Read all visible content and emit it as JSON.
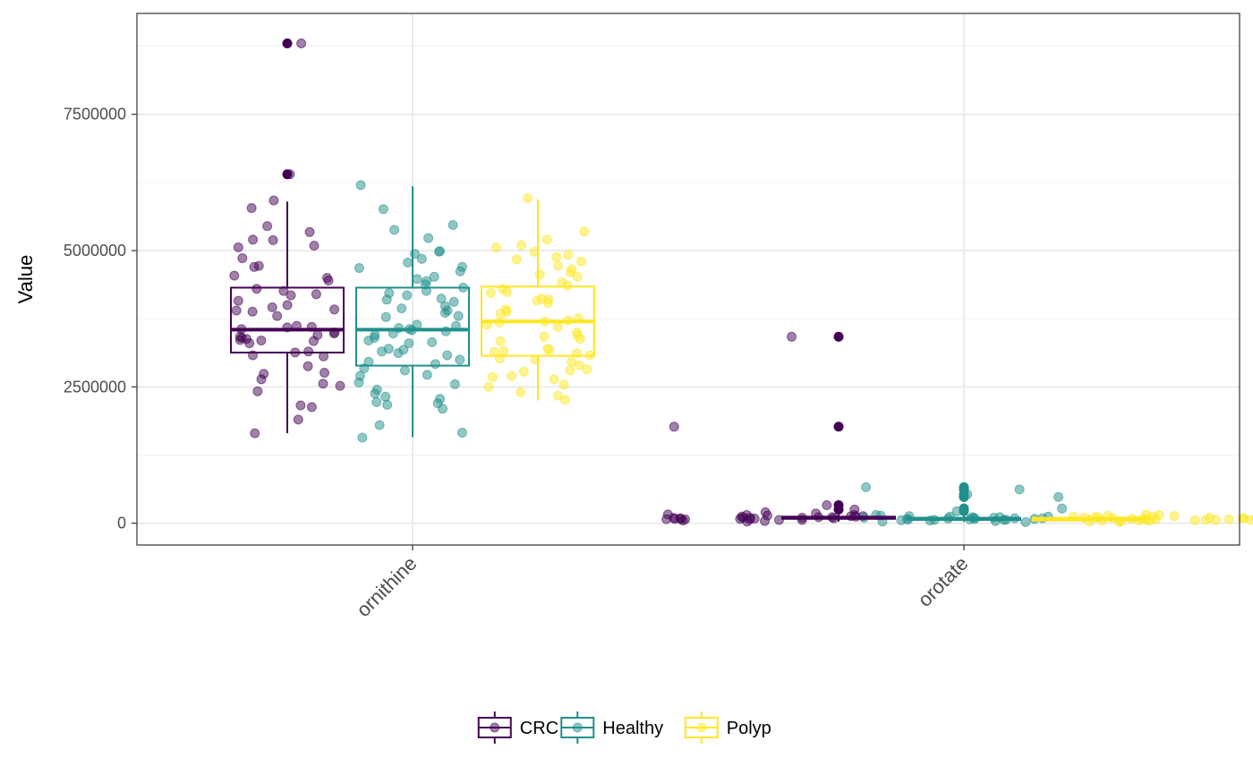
{
  "chart_data": {
    "type": "box",
    "xlabel": "",
    "ylabel": "Value",
    "ylim": [
      -400000,
      9350000
    ],
    "y_ticks": [
      0,
      2500000,
      5000000,
      7500000
    ],
    "y_tick_labels": [
      "0",
      "2500000",
      "5000000",
      "7500000"
    ],
    "grid": true,
    "legend_position": "bottom",
    "categories": [
      "ornithine",
      "orotate"
    ],
    "series": [
      {
        "name": "CRC",
        "color": "#440154",
        "boxes": [
          {
            "category": "ornithine",
            "whisker_low": 1650000,
            "q1": 3130000,
            "median": 3550000,
            "q3": 4320000,
            "whisker_high": 5900000,
            "outliers": [
              6400000,
              8800000
            ]
          },
          {
            "category": "orotate",
            "whisker_low": 30000,
            "q1": 80000,
            "median": 100000,
            "q3": 120000,
            "whisker_high": 200000,
            "outliers": [
              250000,
              330000,
              1770000,
              3420000
            ]
          }
        ],
        "points": {
          "ornithine": [
            8800000,
            6400000,
            5780000,
            5450000,
            5200000,
            5060000,
            5340000,
            5190000,
            4500000,
            4540000,
            4720000,
            4700000,
            4860000,
            4450000,
            4300000,
            4180000,
            4260000,
            4200000,
            4080000,
            4000000,
            3960000,
            3920000,
            3900000,
            3880000,
            3800000,
            3620000,
            3590000,
            3600000,
            3560000,
            3500000,
            3480000,
            3450000,
            3420000,
            3400000,
            3380000,
            3360000,
            3340000,
            3300000,
            3150000,
            3130000,
            3080000,
            3060000,
            2880000,
            2760000,
            2740000,
            2640000,
            2560000,
            2520000,
            2420000,
            2160000,
            2130000,
            1900000,
            1650000,
            5920000,
            3350000,
            5090000
          ],
          "orotate": [
            3420000,
            1770000,
            330000,
            250000,
            200000,
            180000,
            160000,
            150000,
            140000,
            130000,
            120000,
            110000,
            100000,
            95000,
            90000,
            85000,
            80000,
            75000,
            70000,
            60000,
            50000,
            40000,
            30000,
            120000,
            100000,
            80000,
            60000,
            110000,
            90000,
            70000,
            130000,
            150000,
            100000,
            80000
          ]
        }
      },
      {
        "name": "Healthy",
        "color": "#21908C",
        "boxes": [
          {
            "category": "ornithine",
            "whisker_low": 1580000,
            "q1": 2890000,
            "median": 3550000,
            "q3": 4320000,
            "whisker_high": 6180000,
            "outliers": []
          },
          {
            "category": "orotate",
            "whisker_low": 20000,
            "q1": 60000,
            "median": 80000,
            "q3": 100000,
            "whisker_high": 150000,
            "outliers": [
              220000,
              270000,
              480000,
              530000,
              620000,
              660000
            ]
          }
        ],
        "points": {
          "ornithine": [
            6200000,
            5760000,
            5470000,
            5380000,
            5230000,
            4990000,
            4980000,
            4940000,
            4850000,
            4780000,
            4700000,
            4680000,
            4620000,
            4520000,
            4480000,
            4440000,
            4380000,
            4320000,
            4260000,
            4220000,
            4180000,
            4120000,
            4100000,
            4060000,
            3980000,
            3940000,
            3900000,
            3860000,
            3800000,
            3780000,
            3640000,
            3620000,
            3580000,
            3560000,
            3540000,
            3520000,
            3480000,
            3450000,
            3400000,
            3350000,
            3320000,
            3300000,
            3200000,
            3180000,
            3150000,
            3120000,
            3080000,
            3000000,
            2960000,
            2920000,
            2840000,
            2800000,
            2720000,
            2700000,
            2580000,
            2550000,
            2450000,
            2380000,
            2320000,
            2280000,
            2220000,
            2200000,
            2170000,
            2100000,
            1800000,
            1660000,
            1570000
          ],
          "orotate": [
            660000,
            620000,
            530000,
            480000,
            270000,
            220000,
            150000,
            140000,
            130000,
            120000,
            110000,
            100000,
            95000,
            90000,
            85000,
            80000,
            75000,
            70000,
            65000,
            60000,
            55000,
            50000,
            40000,
            30000,
            20000,
            120000,
            100000,
            80000,
            60000,
            90000,
            70000,
            110000
          ]
        }
      },
      {
        "name": "Polyp",
        "color": "#FDE725",
        "boxes": [
          {
            "category": "ornithine",
            "whisker_low": 2250000,
            "q1": 3070000,
            "median": 3700000,
            "q3": 4340000,
            "whisker_high": 5940000,
            "outliers": []
          },
          {
            "category": "orotate",
            "whisker_low": 20000,
            "q1": 50000,
            "median": 70000,
            "q3": 100000,
            "whisker_high": 160000,
            "outliers": []
          }
        ],
        "points": {
          "ornithine": [
            5960000,
            5350000,
            5200000,
            5100000,
            5060000,
            4980000,
            4920000,
            4880000,
            4840000,
            4800000,
            4720000,
            4660000,
            4600000,
            4560000,
            4520000,
            4420000,
            4360000,
            4300000,
            4240000,
            4220000,
            4120000,
            4100000,
            4080000,
            4040000,
            3920000,
            3880000,
            3840000,
            3760000,
            3720000,
            3700000,
            3680000,
            3640000,
            3600000,
            3500000,
            3440000,
            3420000,
            3380000,
            3340000,
            3200000,
            3180000,
            3160000,
            3140000,
            3120000,
            3080000,
            3020000,
            3000000,
            2960000,
            2900000,
            2820000,
            2800000,
            2780000,
            2700000,
            2680000,
            2640000,
            2540000,
            2500000,
            2400000,
            2340000,
            2260000
          ],
          "orotate": [
            160000,
            150000,
            140000,
            130000,
            120000,
            110000,
            100000,
            95000,
            90000,
            85000,
            80000,
            75000,
            70000,
            65000,
            60000,
            55000,
            50000,
            45000,
            40000,
            30000,
            20000,
            110000,
            90000,
            70000,
            50000,
            100000,
            80000,
            60000,
            130000,
            120000
          ]
        }
      }
    ]
  }
}
